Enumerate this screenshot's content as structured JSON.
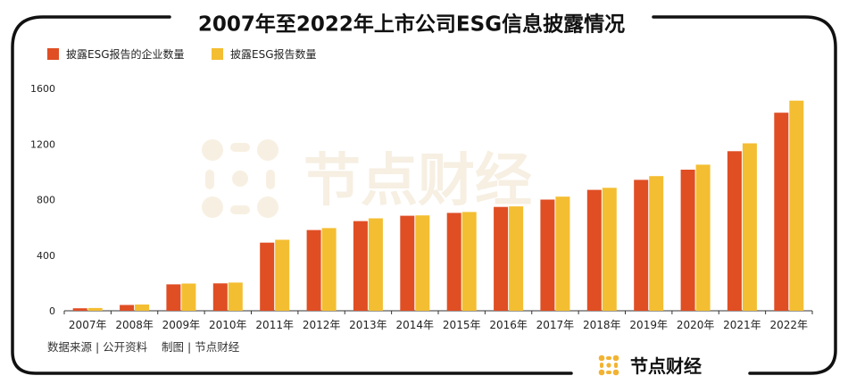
{
  "source": "数据来源 | 公开资料    制图 | 节点财经",
  "logo_text": "节点财经",
  "watermark_text": "节点财经",
  "colors": {
    "series1": "#E04E24",
    "series2": "#F4BE32",
    "logo_accent": "#F2B332"
  },
  "chart_data": {
    "type": "bar",
    "title": "2007年至2022年上市公司ESG信息披露情况",
    "xlabel": "",
    "ylabel": "",
    "ylim": [
      0,
      1600
    ],
    "yticks": [
      0,
      400,
      800,
      1200,
      1600
    ],
    "grid": false,
    "legend_position": "top-left",
    "categories": [
      "2007年",
      "2008年",
      "2009年",
      "2010年",
      "2011年",
      "2012年",
      "2013年",
      "2014年",
      "2015年",
      "2016年",
      "2017年",
      "2018年",
      "2019年",
      "2020年",
      "2021年",
      "2022年"
    ],
    "series": [
      {
        "name": "披露ESG报告的企业数量",
        "values": [
          18,
          42,
          190,
          197,
          490,
          581,
          645,
          684,
          704,
          747,
          800,
          870,
          942,
          1015,
          1148,
          1425
        ]
      },
      {
        "name": "披露ESG报告数量",
        "values": [
          20,
          45,
          196,
          203,
          511,
          595,
          665,
          686,
          711,
          751,
          821,
          885,
          969,
          1051,
          1205,
          1512
        ]
      }
    ]
  }
}
